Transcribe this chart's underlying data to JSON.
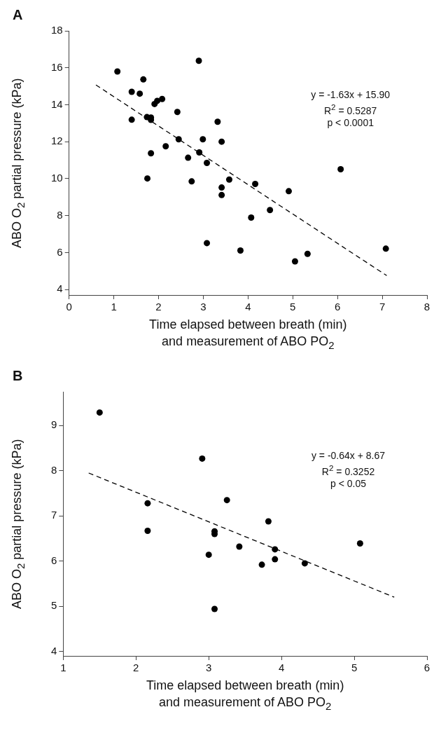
{
  "chart_data": [
    {
      "type": "scatter",
      "title": "A",
      "xlabel": "Time elapsed between breath (min)\nand measurement of ABO PO$_{2}$",
      "ylabel": "ABO O$_{2}$ partial pressure (kPa)",
      "xlim": [
        0,
        8
      ],
      "xticks": [
        0,
        1,
        2,
        3,
        4,
        5,
        6,
        7,
        8
      ],
      "ylim": [
        3.7,
        18
      ],
      "yticks": [
        4,
        6,
        8,
        10,
        12,
        14,
        16,
        18
      ],
      "grid": false,
      "legend": false,
      "marker": "circle",
      "annotations": [
        "y = -1.63x + 15.90",
        "R$^{2}$ = 0.5287",
        "p < 0.0001"
      ],
      "series": [
        {
          "type": "scatter",
          "color": "#000000",
          "x": [
            1.08,
            2.9,
            1.66,
            1.4,
            1.58,
            1.91,
            1.97,
            2.08,
            2.42,
            1.74,
            1.83,
            1.83,
            1.4,
            3.32,
            2.45,
            2.99,
            3.41,
            2.16,
            1.83,
            2.91,
            2.66,
            3.08,
            1.75,
            3.58,
            2.74,
            3.41,
            3.41,
            4.16,
            4.07,
            3.08,
            3.83,
            4.91,
            4.49,
            6.07,
            5.33,
            7.08,
            5.05
          ],
          "values": [
            15.8,
            16.38,
            15.37,
            14.7,
            14.6,
            14.04,
            14.21,
            14.31,
            13.61,
            13.33,
            13.31,
            13.18,
            13.19,
            13.08,
            12.13,
            12.13,
            12.0,
            11.75,
            11.37,
            11.42,
            11.13,
            10.85,
            10.01,
            9.95,
            9.85,
            9.52,
            9.11,
            9.71,
            7.89,
            6.51,
            6.11,
            9.32,
            8.3,
            10.51,
            5.93,
            6.21,
            5.52
          ]
        },
        {
          "type": "line",
          "color": "#000000",
          "line_style": "dashed",
          "marker": "none",
          "x": [
            0.6,
            7.1
          ],
          "values": [
            15.07,
            4.75
          ]
        }
      ]
    },
    {
      "type": "scatter",
      "title": "B",
      "xlabel": "Time elapsed between breath (min)\nand measurement of ABO PO$_{2}$",
      "ylabel": "ABO O$_{2}$ partial pressure (kPa)",
      "xlim": [
        1,
        6
      ],
      "xticks": [
        1,
        2,
        3,
        4,
        5,
        6
      ],
      "ylim": [
        3.9,
        9.75
      ],
      "yticks": [
        4,
        5,
        6,
        7,
        8,
        9
      ],
      "grid": false,
      "legend": false,
      "marker": "circle",
      "annotations": [
        "y = -0.64x + 8.67",
        "R$^{2}$ = 0.3252",
        "p < 0.05"
      ],
      "series": [
        {
          "type": "scatter",
          "color": "#000000",
          "x": [
            1.5,
            2.91,
            2.16,
            3.25,
            2.16,
            3.08,
            3.08,
            3.42,
            3.0,
            3.08,
            3.73,
            3.82,
            3.91,
            3.91,
            4.32,
            5.08
          ],
          "values": [
            9.29,
            8.27,
            7.28,
            7.35,
            6.67,
            6.66,
            6.6,
            6.32,
            6.14,
            4.94,
            5.92,
            6.88,
            6.26,
            6.04,
            5.95,
            6.39
          ]
        },
        {
          "type": "line",
          "color": "#000000",
          "line_style": "dashed",
          "marker": "none",
          "x": [
            1.35,
            5.55
          ],
          "values": [
            7.95,
            5.2
          ]
        }
      ]
    }
  ]
}
